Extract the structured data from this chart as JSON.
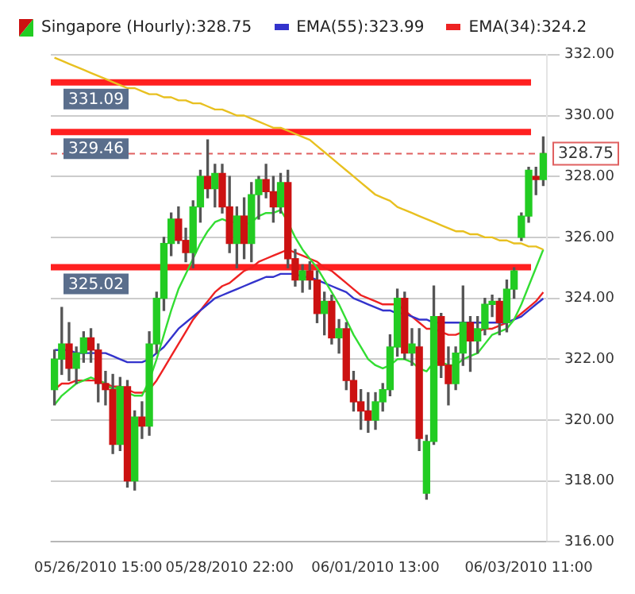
{
  "chart_data": {
    "type": "candlestick",
    "title": "Singapore (Hourly):328.75",
    "categories": [
      null,
      null,
      null,
      null,
      null,
      null,
      "05/26/2010 15:00",
      null,
      null,
      null,
      null,
      null,
      null,
      null,
      null,
      null,
      null,
      null,
      null,
      null,
      null,
      null,
      null,
      null,
      "05/28/2010 22:00",
      null,
      null,
      null,
      null,
      null,
      null,
      null,
      null,
      null,
      null,
      null,
      null,
      null,
      null,
      null,
      null,
      null,
      null,
      null,
      "06/01/2010 13:00",
      null,
      null,
      null,
      null,
      null,
      null,
      null,
      null,
      null,
      null,
      null,
      null,
      null,
      null,
      null,
      null,
      null,
      null,
      null,
      null,
      "06/03/2010 11:00",
      null,
      null
    ],
    "ohlc": [
      [
        321.0,
        322.3,
        320.5,
        322.0
      ],
      [
        322.0,
        323.7,
        321.5,
        322.5
      ],
      [
        322.5,
        323.2,
        321.3,
        321.7
      ],
      [
        321.7,
        322.4,
        321.2,
        322.2
      ],
      [
        322.2,
        322.9,
        321.9,
        322.7
      ],
      [
        322.7,
        323.0,
        321.9,
        322.3
      ],
      [
        322.3,
        322.5,
        320.6,
        321.2
      ],
      [
        321.2,
        321.6,
        320.5,
        321.0
      ],
      [
        321.0,
        321.5,
        318.9,
        319.2
      ],
      [
        319.2,
        321.4,
        319.0,
        321.1
      ],
      [
        321.1,
        321.3,
        317.8,
        318.0
      ],
      [
        318.0,
        320.3,
        317.7,
        320.1
      ],
      [
        320.1,
        320.6,
        319.4,
        319.8
      ],
      [
        319.8,
        322.9,
        319.5,
        322.5
      ],
      [
        322.5,
        324.2,
        322.2,
        324.0
      ],
      [
        324.0,
        326.0,
        323.6,
        325.8
      ],
      [
        325.8,
        326.8,
        325.4,
        326.6
      ],
      [
        326.6,
        327.0,
        325.8,
        325.9
      ],
      [
        325.9,
        326.3,
        325.2,
        325.5
      ],
      [
        325.5,
        327.2,
        325.0,
        327.0
      ],
      [
        327.0,
        328.2,
        326.5,
        328.0
      ],
      [
        328.0,
        329.2,
        327.3,
        327.6
      ],
      [
        327.6,
        328.4,
        327.0,
        328.1
      ],
      [
        328.1,
        328.4,
        326.8,
        327.0
      ],
      [
        327.0,
        328.0,
        325.5,
        325.8
      ],
      [
        325.8,
        327.0,
        325.0,
        326.7
      ],
      [
        326.7,
        327.3,
        325.3,
        325.8
      ],
      [
        325.8,
        327.8,
        325.2,
        327.4
      ],
      [
        327.4,
        328.0,
        326.6,
        327.9
      ],
      [
        327.9,
        328.4,
        327.3,
        327.5
      ],
      [
        327.5,
        328.0,
        326.5,
        327.0
      ],
      [
        327.0,
        328.1,
        326.8,
        327.8
      ],
      [
        327.8,
        328.2,
        325.0,
        325.3
      ],
      [
        325.3,
        325.6,
        324.4,
        324.6
      ],
      [
        324.6,
        325.1,
        324.2,
        324.9
      ],
      [
        324.9,
        325.2,
        324.3,
        324.6
      ],
      [
        324.6,
        324.9,
        323.2,
        323.5
      ],
      [
        323.5,
        324.2,
        322.8,
        323.9
      ],
      [
        323.9,
        324.1,
        322.5,
        322.7
      ],
      [
        322.7,
        323.3,
        322.2,
        323.0
      ],
      [
        323.0,
        323.2,
        321.0,
        321.3
      ],
      [
        321.3,
        321.6,
        320.3,
        320.6
      ],
      [
        320.6,
        321.0,
        319.7,
        320.3
      ],
      [
        320.3,
        320.9,
        319.6,
        320.0
      ],
      [
        320.0,
        320.9,
        319.7,
        320.6
      ],
      [
        320.6,
        321.2,
        320.3,
        321.0
      ],
      [
        321.0,
        322.8,
        320.8,
        322.4
      ],
      [
        322.4,
        324.3,
        322.1,
        324.0
      ],
      [
        324.0,
        324.2,
        322.0,
        322.2
      ],
      [
        322.2,
        323.0,
        321.8,
        322.5
      ],
      [
        322.4,
        323.0,
        319.0,
        319.4
      ],
      [
        317.6,
        319.5,
        317.4,
        319.3
      ],
      [
        319.3,
        324.4,
        319.2,
        323.4
      ],
      [
        323.4,
        323.5,
        321.4,
        321.8
      ],
      [
        321.8,
        322.4,
        320.5,
        321.2
      ],
      [
        321.2,
        322.4,
        321.0,
        322.2
      ],
      [
        322.2,
        324.4,
        321.8,
        323.2
      ],
      [
        323.2,
        323.4,
        321.6,
        322.6
      ],
      [
        322.6,
        323.4,
        322.2,
        323.0
      ],
      [
        323.0,
        324.0,
        322.8,
        323.8
      ],
      [
        323.8,
        324.1,
        323.4,
        323.9
      ],
      [
        323.9,
        324.0,
        322.8,
        323.2
      ],
      [
        323.2,
        324.6,
        322.9,
        324.3
      ],
      [
        324.3,
        325.0,
        324.0,
        324.9
      ],
      [
        326.0,
        326.8,
        325.9,
        326.7
      ],
      [
        326.7,
        328.3,
        326.5,
        328.2
      ],
      [
        328.0,
        328.3,
        327.4,
        327.9
      ],
      [
        327.9,
        329.3,
        327.7,
        328.75
      ]
    ],
    "colors": [
      "#22cc22",
      "#22cc22",
      "#cc1111",
      "#22cc22",
      "#22cc22",
      "#cc1111",
      "#cc1111",
      "#cc1111",
      "#cc1111",
      "#22cc22",
      "#cc1111",
      "#22cc22",
      "#cc1111",
      "#22cc22",
      "#22cc22",
      "#22cc22",
      "#22cc22",
      "#cc1111",
      "#cc1111",
      "#22cc22",
      "#22cc22",
      "#cc1111",
      "#22cc22",
      "#cc1111",
      "#cc1111",
      "#22cc22",
      "#cc1111",
      "#22cc22",
      "#22cc22",
      "#cc1111",
      "#cc1111",
      "#22cc22",
      "#cc1111",
      "#cc1111",
      "#22cc22",
      "#cc1111",
      "#cc1111",
      "#22cc22",
      "#cc1111",
      "#22cc22",
      "#cc1111",
      "#cc1111",
      "#cc1111",
      "#cc1111",
      "#22cc22",
      "#22cc22",
      "#22cc22",
      "#22cc22",
      "#cc1111",
      "#22cc22",
      "#cc1111",
      "#22cc22",
      "#22cc22",
      "#cc1111",
      "#cc1111",
      "#22cc22",
      "#22cc22",
      "#cc1111",
      "#22cc22",
      "#22cc22",
      "#22cc22",
      "#cc1111",
      "#22cc22",
      "#22cc22",
      "#22cc22",
      "#22cc22",
      "#cc1111",
      "#22cc22"
    ],
    "series": [
      {
        "type": "line",
        "color": "#e8c020",
        "values": [
          331.9,
          331.8,
          331.7,
          331.6,
          331.5,
          331.4,
          331.3,
          331.2,
          331.1,
          331.0,
          330.9,
          330.9,
          330.8,
          330.7,
          330.7,
          330.6,
          330.6,
          330.5,
          330.5,
          330.4,
          330.4,
          330.3,
          330.2,
          330.2,
          330.1,
          330.0,
          330.0,
          329.9,
          329.8,
          329.7,
          329.6,
          329.6,
          329.5,
          329.4,
          329.3,
          329.2,
          329.0,
          328.8,
          328.6,
          328.4,
          328.2,
          328.0,
          327.8,
          327.6,
          327.4,
          327.3,
          327.2,
          327.0,
          326.9,
          326.8,
          326.7,
          326.6,
          326.5,
          326.4,
          326.3,
          326.2,
          326.2,
          326.1,
          326.1,
          326.0,
          326.0,
          325.9,
          325.9,
          325.8,
          325.8,
          325.7,
          325.7,
          325.6
        ]
      },
      {
        "type": "line",
        "color": "#33dd33",
        "values": [
          320.5,
          320.8,
          321.0,
          321.2,
          321.3,
          321.4,
          321.3,
          321.2,
          321.0,
          321.1,
          320.9,
          320.8,
          320.8,
          321.3,
          322.0,
          322.8,
          323.6,
          324.3,
          324.8,
          325.3,
          325.8,
          326.2,
          326.5,
          326.6,
          326.5,
          326.5,
          326.4,
          326.5,
          326.7,
          326.8,
          326.8,
          326.9,
          326.5,
          326.0,
          325.6,
          325.3,
          325.0,
          324.6,
          324.2,
          323.8,
          323.3,
          322.8,
          322.4,
          322.0,
          321.8,
          321.7,
          321.8,
          322.0,
          322.0,
          321.9,
          321.7,
          321.6,
          321.9,
          321.9,
          321.8,
          321.8,
          322.0,
          322.1,
          322.2,
          322.5,
          322.8,
          322.9,
          323.0,
          323.3,
          323.8,
          324.4,
          325.0,
          325.6
        ]
      },
      {
        "type": "line",
        "name": "EMA(55):323.99",
        "color": "#3333cc",
        "values": [
          322.3,
          322.3,
          322.3,
          322.2,
          322.2,
          322.2,
          322.2,
          322.2,
          322.1,
          322.0,
          321.9,
          321.9,
          321.9,
          322.0,
          322.2,
          322.4,
          322.7,
          323.0,
          323.2,
          323.4,
          323.6,
          323.8,
          324.0,
          324.1,
          324.2,
          324.3,
          324.4,
          324.5,
          324.6,
          324.7,
          324.7,
          324.8,
          324.8,
          324.8,
          324.7,
          324.7,
          324.6,
          324.5,
          324.4,
          324.3,
          324.2,
          324.0,
          323.9,
          323.8,
          323.7,
          323.6,
          323.6,
          323.5,
          323.5,
          323.4,
          323.3,
          323.3,
          323.2,
          323.2,
          323.2,
          323.2,
          323.2,
          323.2,
          323.2,
          323.2,
          323.2,
          323.2,
          323.2,
          323.3,
          323.4,
          323.6,
          323.8,
          323.99
        ]
      },
      {
        "type": "line",
        "name": "EMA(34):324.2",
        "color": "#ee2222",
        "values": [
          321.0,
          321.2,
          321.2,
          321.3,
          321.3,
          321.3,
          321.3,
          321.2,
          321.1,
          321.1,
          321.0,
          320.9,
          320.9,
          321.0,
          321.3,
          321.7,
          322.1,
          322.5,
          322.9,
          323.3,
          323.6,
          323.9,
          324.2,
          324.4,
          324.5,
          324.7,
          324.9,
          325.0,
          325.2,
          325.3,
          325.4,
          325.5,
          325.6,
          325.5,
          325.4,
          325.3,
          325.2,
          325.0,
          324.9,
          324.7,
          324.5,
          324.3,
          324.1,
          324.0,
          323.9,
          323.8,
          323.8,
          323.8,
          323.6,
          323.4,
          323.2,
          323.0,
          323.0,
          322.9,
          322.8,
          322.8,
          322.9,
          322.9,
          322.9,
          323.0,
          323.0,
          323.1,
          323.2,
          323.3,
          323.5,
          323.7,
          323.9,
          324.2
        ]
      }
    ],
    "ylim": [
      316,
      332
    ],
    "yticks": [
      {
        "value": 316,
        "label": "316.00"
      },
      {
        "value": 318,
        "label": "318.00"
      },
      {
        "value": 320,
        "label": "320.00"
      },
      {
        "value": 322,
        "label": "322.00"
      },
      {
        "value": 324,
        "label": "324.00"
      },
      {
        "value": 326,
        "label": "326.00"
      },
      {
        "value": 328,
        "label": "328.00"
      },
      {
        "value": 330,
        "label": "330.00"
      },
      {
        "value": 332,
        "label": "332.00"
      }
    ],
    "ref_lines": [
      {
        "axis": "y",
        "value": 331.09,
        "label": "331.09",
        "color": "#ff2020",
        "line_style": "solid"
      },
      {
        "axis": "y",
        "value": 329.46,
        "label": "329.46",
        "color": "#ff2020",
        "line_style": "solid"
      },
      {
        "axis": "y",
        "value": 325.02,
        "label": "325.02",
        "color": "#ff2020",
        "line_style": "solid"
      },
      {
        "axis": "y",
        "value": 328.75,
        "label": "328.75",
        "color": "#e06060",
        "line_style": "dashed"
      }
    ],
    "grid": "y",
    "legend": "top",
    "marker": "none"
  }
}
